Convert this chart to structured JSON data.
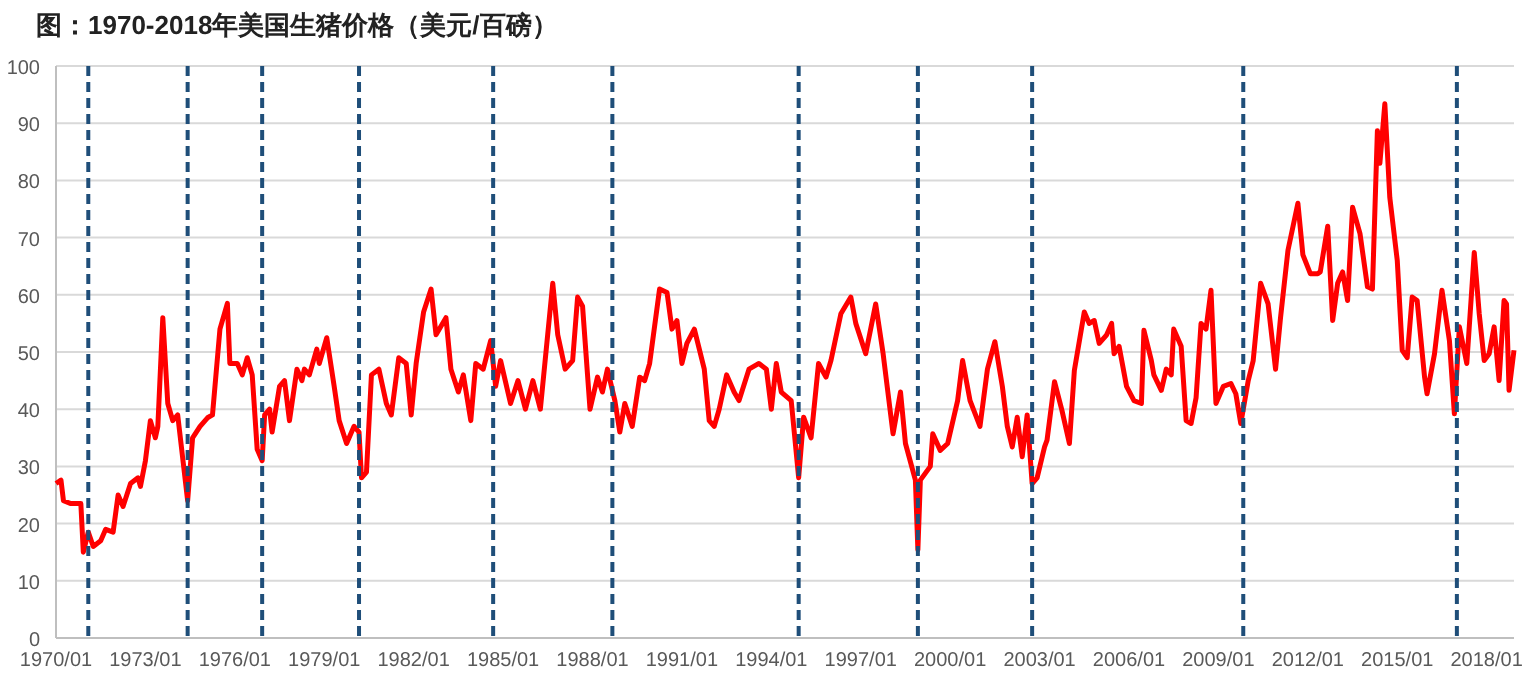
{
  "chart_data": {
    "type": "line",
    "title": "图：1970-2018年美国生猪价格（美元/百磅）",
    "xlim": [
      "1970-01",
      "2018-12"
    ],
    "ylim": [
      0,
      100
    ],
    "yticks": [
      0,
      10,
      20,
      30,
      40,
      50,
      60,
      70,
      80,
      90,
      100
    ],
    "xticks": [
      {
        "value": "1970-01",
        "label": "1970/01"
      },
      {
        "value": "1973-01",
        "label": "1973/01"
      },
      {
        "value": "1976-01",
        "label": "1976/01"
      },
      {
        "value": "1979-01",
        "label": "1979/01"
      },
      {
        "value": "1982-01",
        "label": "1982/01"
      },
      {
        "value": "1985-01",
        "label": "1985/01"
      },
      {
        "value": "1988-01",
        "label": "1988/01"
      },
      {
        "value": "1991-01",
        "label": "1991/01"
      },
      {
        "value": "1994-01",
        "label": "1994/01"
      },
      {
        "value": "1997-01",
        "label": "1997/01"
      },
      {
        "value": "2000-01",
        "label": "2000/01"
      },
      {
        "value": "2003-01",
        "label": "2003/01"
      },
      {
        "value": "2006-01",
        "label": "2006/01"
      },
      {
        "value": "2009-01",
        "label": "2009/01"
      },
      {
        "value": "2012-01",
        "label": "2012/01"
      },
      {
        "value": "2015-01",
        "label": "2015/01"
      },
      {
        "value": "2018-01",
        "label": "2018/01"
      }
    ],
    "grid": "y",
    "marker": "none",
    "line_style": "solid",
    "ref_lines": [
      {
        "axis": "x",
        "value": "1971-02",
        "color": "#1f4e79",
        "line_style": "dashed"
      },
      {
        "axis": "x",
        "value": "1974-06",
        "color": "#1f4e79",
        "line_style": "dashed"
      },
      {
        "axis": "x",
        "value": "1976-12",
        "color": "#1f4e79",
        "line_style": "dashed"
      },
      {
        "axis": "x",
        "value": "1980-03",
        "color": "#1f4e79",
        "line_style": "dashed"
      },
      {
        "axis": "x",
        "value": "1984-09",
        "color": "#1f4e79",
        "line_style": "dashed"
      },
      {
        "axis": "x",
        "value": "1988-09",
        "color": "#1f4e79",
        "line_style": "dashed"
      },
      {
        "axis": "x",
        "value": "1994-12",
        "color": "#1f4e79",
        "line_style": "dashed"
      },
      {
        "axis": "x",
        "value": "1998-12",
        "color": "#1f4e79",
        "line_style": "dashed"
      },
      {
        "axis": "x",
        "value": "2002-10",
        "color": "#1f4e79",
        "line_style": "dashed"
      },
      {
        "axis": "x",
        "value": "2009-11",
        "color": "#1f4e79",
        "line_style": "dashed"
      },
      {
        "axis": "x",
        "value": "2017-01",
        "color": "#1f4e79",
        "line_style": "dashed"
      }
    ],
    "series": [
      {
        "color": "#ff0000",
        "x": [
          "1970-01",
          "1970-03",
          "1970-04",
          "1970-07",
          "1970-11",
          "1970-12",
          "1971-02",
          "1971-04",
          "1971-07",
          "1971-09",
          "1971-12",
          "1972-02",
          "1972-04",
          "1972-07",
          "1972-10",
          "1972-11",
          "1973-01",
          "1973-03",
          "1973-05",
          "1973-06",
          "1973-08",
          "1973-10",
          "1973-12",
          "1974-02",
          "1974-06",
          "1974-08",
          "1974-11",
          "1975-02",
          "1975-04",
          "1975-07",
          "1975-10",
          "1975-11",
          "1976-02",
          "1976-04",
          "1976-06",
          "1976-08",
          "1976-10",
          "1976-12",
          "1977-01",
          "1977-03",
          "1977-04",
          "1977-07",
          "1977-09",
          "1977-11",
          "1978-02",
          "1978-04",
          "1978-05",
          "1978-07",
          "1978-10",
          "1978-11",
          "1979-02",
          "1979-05",
          "1979-07",
          "1979-10",
          "1980-01",
          "1980-03",
          "1980-04",
          "1980-06",
          "1980-08",
          "1980-11",
          "1981-02",
          "1981-04",
          "1981-07",
          "1981-10",
          "1981-12",
          "1982-02",
          "1982-05",
          "1982-08",
          "1982-10",
          "1983-02",
          "1983-04",
          "1983-07",
          "1983-09",
          "1983-12",
          "1984-02",
          "1984-05",
          "1984-08",
          "1984-10",
          "1984-12",
          "1985-04",
          "1985-07",
          "1985-10",
          "1986-01",
          "1986-04",
          "1986-09",
          "1986-11",
          "1987-02",
          "1987-05",
          "1987-07",
          "1987-09",
          "1987-12",
          "1988-03",
          "1988-05",
          "1988-07",
          "1988-10",
          "1988-12",
          "1989-02",
          "1989-05",
          "1989-08",
          "1989-10",
          "1989-12",
          "1990-04",
          "1990-07",
          "1990-09",
          "1990-11",
          "1991-01",
          "1991-03",
          "1991-06",
          "1991-10",
          "1991-12",
          "1992-02",
          "1992-04",
          "1992-07",
          "1992-10",
          "1992-12",
          "1993-04",
          "1993-08",
          "1993-11",
          "1994-01",
          "1994-03",
          "1994-05",
          "1994-09",
          "1994-12",
          "1995-02",
          "1995-05",
          "1995-08",
          "1995-11",
          "1996-01",
          "1996-05",
          "1996-09",
          "1996-11",
          "1997-03",
          "1997-07",
          "1997-10",
          "1998-02",
          "1998-05",
          "1998-07",
          "1998-11",
          "1998-12",
          "1999-01",
          "1999-05",
          "1999-06",
          "1999-09",
          "1999-12",
          "2000-04",
          "2000-06",
          "2000-09",
          "2001-01",
          "2001-04",
          "2001-07",
          "2001-10",
          "2001-12",
          "2002-02",
          "2002-04",
          "2002-06",
          "2002-08",
          "2002-10",
          "2002-12",
          "2003-03",
          "2003-04",
          "2003-07",
          "2003-10",
          "2004-01",
          "2004-03",
          "2004-07",
          "2004-09",
          "2004-11",
          "2005-01",
          "2005-04",
          "2005-06",
          "2005-07",
          "2005-09",
          "2005-12",
          "2006-03",
          "2006-06",
          "2006-07",
          "2006-10",
          "2006-11",
          "2007-02",
          "2007-04",
          "2007-06",
          "2007-07",
          "2007-10",
          "2007-12",
          "2008-02",
          "2008-04",
          "2008-06",
          "2008-08",
          "2008-10",
          "2008-12",
          "2009-03",
          "2009-06",
          "2009-08",
          "2009-10",
          "2010-01",
          "2010-03",
          "2010-06",
          "2010-09",
          "2010-12",
          "2011-02",
          "2011-05",
          "2011-09",
          "2011-11",
          "2012-02",
          "2012-05",
          "2012-06",
          "2012-09",
          "2012-11",
          "2013-01",
          "2013-03",
          "2013-05",
          "2013-07",
          "2013-10",
          "2014-01",
          "2014-03",
          "2014-05",
          "2014-06",
          "2014-08",
          "2014-10",
          "2015-01",
          "2015-03",
          "2015-05",
          "2015-07",
          "2015-09",
          "2015-12",
          "2016-01",
          "2016-04",
          "2016-07",
          "2016-10",
          "2016-12",
          "2017-02",
          "2017-05",
          "2017-08",
          "2017-10",
          "2017-12",
          "2018-02",
          "2018-04",
          "2018-06",
          "2018-08",
          "2018-09",
          "2018-10",
          "2018-12"
        ],
        "values": [
          27,
          27.6,
          24,
          23.5,
          23.5,
          15,
          18.5,
          16,
          17,
          19,
          18.5,
          25,
          23,
          27,
          28,
          26.5,
          31,
          38,
          35,
          37,
          56,
          41,
          38,
          39,
          24,
          35,
          37,
          38.5,
          39,
          54,
          58.5,
          48,
          48,
          46,
          49,
          46,
          33,
          31,
          39,
          40,
          36,
          44,
          45,
          38,
          47,
          45,
          47,
          46,
          50.5,
          48,
          52.5,
          44,
          38,
          34,
          37,
          36,
          28,
          29,
          46,
          47,
          41,
          39,
          49,
          48,
          39,
          48,
          57,
          61,
          53,
          56,
          47,
          43,
          46,
          38,
          48,
          47,
          52,
          44,
          48.5,
          41,
          45,
          40,
          45,
          40,
          62,
          53,
          47,
          48.5,
          59.6,
          58,
          40,
          45.6,
          43,
          47,
          41.5,
          36,
          41,
          37,
          45.6,
          45,
          48,
          61,
          60.4,
          54,
          55.5,
          48,
          51.5,
          54,
          47,
          38,
          37,
          40,
          46,
          43,
          41.5,
          47,
          48,
          47,
          40,
          48,
          43,
          41.5,
          28,
          38.6,
          35,
          48,
          45.6,
          48.5,
          56.7,
          59.6,
          55,
          49.7,
          58.4,
          49.7,
          35.7,
          43,
          34,
          27.6,
          15.4,
          27.6,
          30,
          35.7,
          32.8,
          34,
          41.5,
          48.5,
          41.5,
          37,
          47,
          51.8,
          44,
          37,
          33.4,
          38.6,
          31.7,
          39,
          27,
          28,
          33.4,
          34.6,
          44.8,
          39.8,
          34,
          46.8,
          57,
          55,
          55.5,
          51.5,
          53,
          55,
          49.7,
          51,
          44,
          41.5,
          41,
          53.8,
          48.5,
          46,
          43.3,
          47,
          46,
          54,
          51,
          38,
          37.5,
          42,
          55,
          54,
          60.8,
          41,
          44,
          44.5,
          42.7,
          37.5,
          45,
          48.5,
          62,
          58.4,
          47,
          56,
          67.8,
          76,
          67,
          63.7,
          63.7,
          64,
          72,
          55.5,
          62,
          64,
          59,
          75.3,
          70.7,
          61.4,
          61,
          88.7,
          83,
          93.4,
          77,
          66,
          50.3,
          49,
          59.6,
          59,
          45.6,
          42.7,
          49.7,
          60.8,
          52,
          39.2,
          54.4,
          48,
          67.4,
          56.7,
          48.5,
          49.7,
          54.4,
          45,
          59,
          58.4,
          43.3,
          50.3
        ]
      }
    ]
  }
}
